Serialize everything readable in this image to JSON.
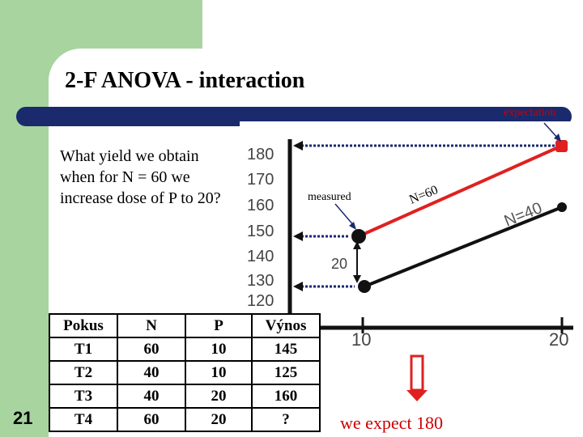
{
  "title": "2-F ANOVA - interaction",
  "expectation_label": "expectation",
  "question": "What yield  we obtain when for N = 60 we increase dose of P  to 20?",
  "slide_number": "21",
  "measured_label": "measured",
  "diff_label": "20",
  "n60_label": "N=60",
  "n40_label": "N=40",
  "conclusion": "we expect 180",
  "colors": {
    "green": "#a8d4a0",
    "navy": "#1a2a6c",
    "red": "#e02020",
    "accent_text": "#cc0000"
  },
  "table": {
    "headers": [
      "Pokus",
      "N",
      "P",
      "Výnos"
    ],
    "rows": [
      [
        "T1",
        "60",
        "10",
        "145"
      ],
      [
        "T2",
        "40",
        "10",
        "125"
      ],
      [
        "T3",
        "40",
        "20",
        "160"
      ],
      [
        "T4",
        "60",
        "20",
        "?"
      ]
    ]
  },
  "chart_data": {
    "type": "line",
    "x": [
      10,
      20
    ],
    "y_ticks": [
      120,
      130,
      140,
      150,
      160,
      170,
      180
    ],
    "x_ticks": [
      10,
      20
    ],
    "series": [
      {
        "name": "N=60",
        "values": [
          145,
          180
        ]
      },
      {
        "name": "N=40",
        "values": [
          125,
          160
        ]
      }
    ]
  }
}
